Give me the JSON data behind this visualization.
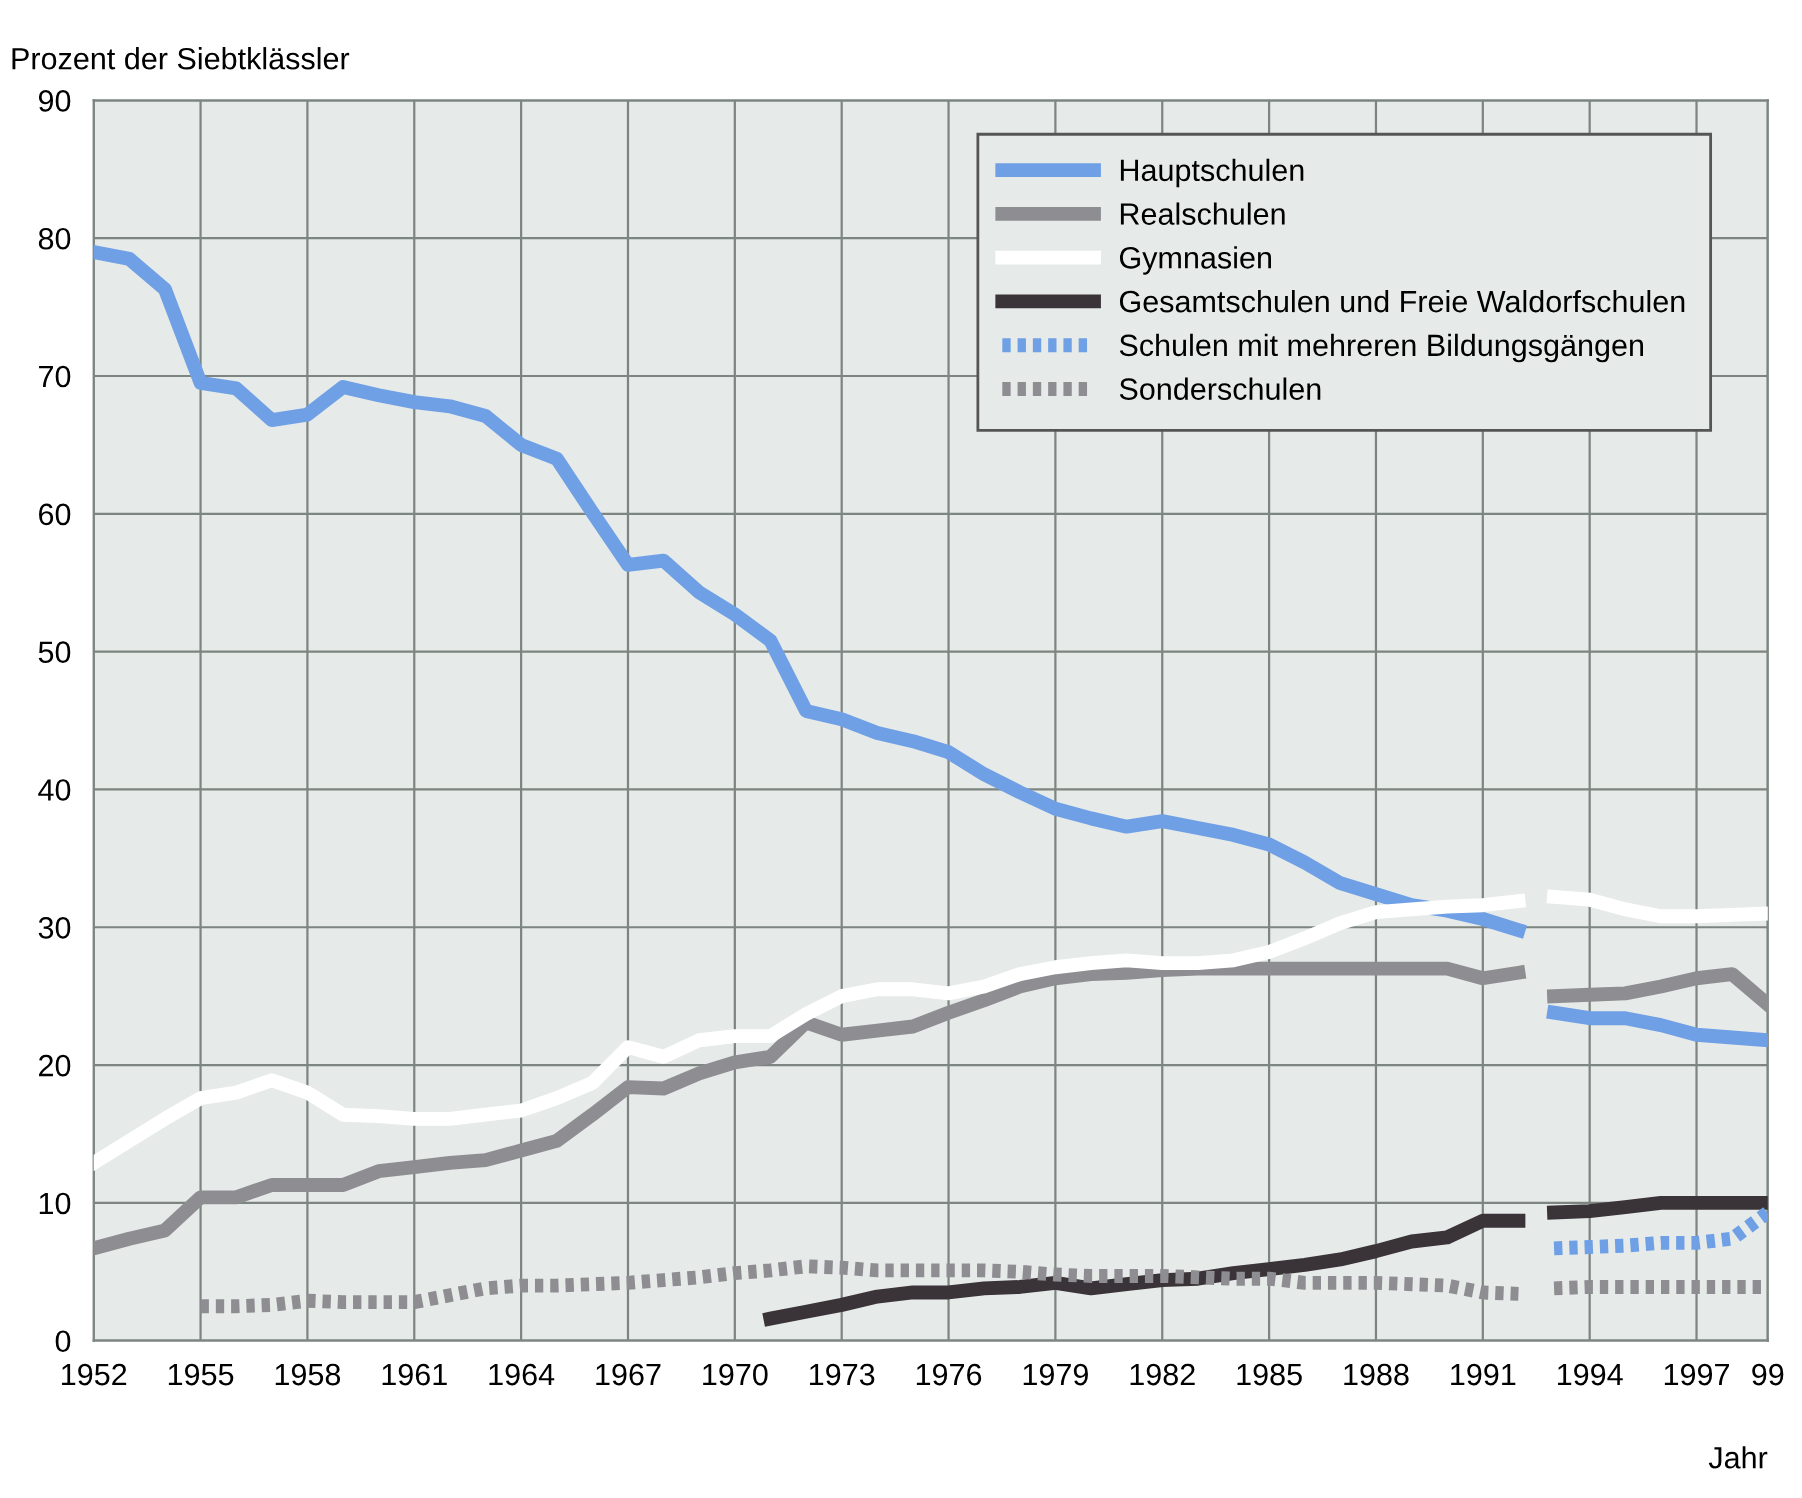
{
  "chart_data": {
    "type": "line",
    "xlabel": "Jahr",
    "ylabel": "Prozent der Siebtklässler",
    "x": [
      1952,
      1953,
      1954,
      1955,
      1956,
      1957,
      1958,
      1959,
      1960,
      1961,
      1962,
      1963,
      1964,
      1965,
      1966,
      1967,
      1968,
      1969,
      1970,
      1971,
      1972,
      1973,
      1974,
      1975,
      1976,
      1977,
      1978,
      1979,
      1980,
      1981,
      1982,
      1983,
      1984,
      1985,
      1986,
      1987,
      1988,
      1989,
      1990,
      1991,
      1992,
      1992.5,
      1993,
      1994,
      1995,
      1996,
      1997,
      1998,
      1999
    ],
    "xlim": [
      1952,
      1999
    ],
    "xticks": [
      1952,
      1955,
      1958,
      1961,
      1964,
      1967,
      1970,
      1973,
      1976,
      1979,
      1982,
      1985,
      1988,
      1991,
      1994,
      1997,
      {
        "value": 1999,
        "label": "99"
      }
    ],
    "ylim": [
      0,
      90
    ],
    "yticks": [
      0,
      10,
      20,
      30,
      40,
      50,
      60,
      70,
      80,
      90
    ],
    "grid": true,
    "legend": "top right",
    "series": [
      {
        "name": "Hauptschulen",
        "color": "#6fa0e6",
        "line_style": "solid",
        "values": [
          79.0,
          78.5,
          76.3,
          69.5,
          69.1,
          66.8,
          67.2,
          69.2,
          68.6,
          68.1,
          67.8,
          67.1,
          65.0,
          64.0,
          60.1,
          56.3,
          56.6,
          54.3,
          52.7,
          50.8,
          45.7,
          45.1,
          44.1,
          43.5,
          42.7,
          41.1,
          39.8,
          38.6,
          37.9,
          37.3,
          37.7,
          37.2,
          36.7,
          36.0,
          34.7,
          33.2,
          32.4,
          31.6,
          31.2,
          30.6,
          29.8,
          null,
          23.8,
          23.4,
          23.4,
          22.9,
          22.2,
          22.0,
          21.8
        ]
      },
      {
        "name": "Realschulen",
        "color": "#8e8e92",
        "line_style": "solid",
        "values": [
          6.7,
          7.4,
          8.0,
          10.4,
          10.4,
          11.3,
          11.3,
          11.3,
          12.3,
          12.6,
          12.9,
          13.1,
          13.8,
          14.5,
          16.4,
          18.4,
          18.3,
          19.4,
          20.2,
          20.6,
          23.1,
          22.2,
          22.5,
          22.8,
          23.8,
          24.7,
          25.7,
          26.3,
          26.6,
          26.7,
          26.9,
          27.0,
          27.0,
          27.0,
          27.0,
          27.0,
          27.0,
          27.0,
          27.0,
          26.3,
          26.7,
          null,
          25.0,
          25.1,
          25.2,
          25.7,
          26.3,
          26.6,
          24.4
        ]
      },
      {
        "name": "Gymnasien",
        "color": "#ffffff",
        "line_style": "solid",
        "values": [
          12.9,
          14.5,
          16.1,
          17.6,
          18.0,
          18.9,
          18.0,
          16.4,
          16.3,
          16.1,
          16.1,
          16.4,
          16.7,
          17.6,
          18.7,
          21.3,
          20.6,
          21.8,
          22.1,
          22.1,
          23.7,
          25.0,
          25.5,
          25.5,
          25.2,
          25.7,
          26.6,
          27.1,
          27.4,
          27.6,
          27.4,
          27.4,
          27.6,
          28.2,
          29.2,
          30.3,
          31.1,
          31.3,
          31.5,
          31.6,
          31.9,
          null,
          32.2,
          32.0,
          31.3,
          30.8,
          30.8,
          30.9,
          31.0
        ]
      },
      {
        "name": "Gesamtschulen und Freie Waldorfschulen",
        "color": "#3a3338",
        "line_style": "solid",
        "values": [
          null,
          null,
          null,
          null,
          null,
          null,
          null,
          null,
          null,
          null,
          null,
          null,
          null,
          null,
          null,
          null,
          null,
          null,
          null,
          1.6,
          2.1,
          2.6,
          3.2,
          3.5,
          3.5,
          3.8,
          3.9,
          4.2,
          3.8,
          4.1,
          4.4,
          4.5,
          4.9,
          5.2,
          5.5,
          5.9,
          6.5,
          7.2,
          7.5,
          8.7,
          8.7,
          null,
          9.3,
          9.4,
          9.7,
          10.0,
          10.0,
          10.0,
          10.0
        ]
      },
      {
        "name": "Schulen mit mehreren Bildungsgängen",
        "color": "#6fa0e6",
        "line_style": "dotted",
        "values": [
          null,
          null,
          null,
          null,
          null,
          null,
          null,
          null,
          null,
          null,
          null,
          null,
          null,
          null,
          null,
          null,
          null,
          null,
          null,
          null,
          null,
          null,
          null,
          null,
          null,
          null,
          null,
          null,
          null,
          null,
          null,
          null,
          null,
          null,
          null,
          null,
          null,
          null,
          null,
          null,
          null,
          null,
          6.7,
          6.8,
          6.9,
          7.1,
          7.1,
          7.4,
          9.3
        ]
      },
      {
        "name": "Sonderschulen",
        "color": "#8e8e92",
        "line_style": "dotted",
        "values": [
          null,
          null,
          null,
          2.5,
          2.5,
          2.6,
          2.9,
          2.8,
          2.8,
          2.8,
          3.3,
          3.8,
          4.0,
          4.0,
          4.1,
          4.2,
          4.4,
          4.6,
          4.9,
          5.1,
          5.4,
          5.3,
          5.1,
          5.1,
          5.1,
          5.1,
          5.0,
          4.8,
          4.7,
          4.7,
          4.7,
          4.6,
          4.5,
          4.5,
          4.2,
          4.2,
          4.2,
          4.1,
          4.0,
          3.5,
          3.4,
          null,
          3.8,
          3.9,
          3.9,
          3.9,
          3.9,
          3.9,
          3.9
        ]
      }
    ]
  }
}
